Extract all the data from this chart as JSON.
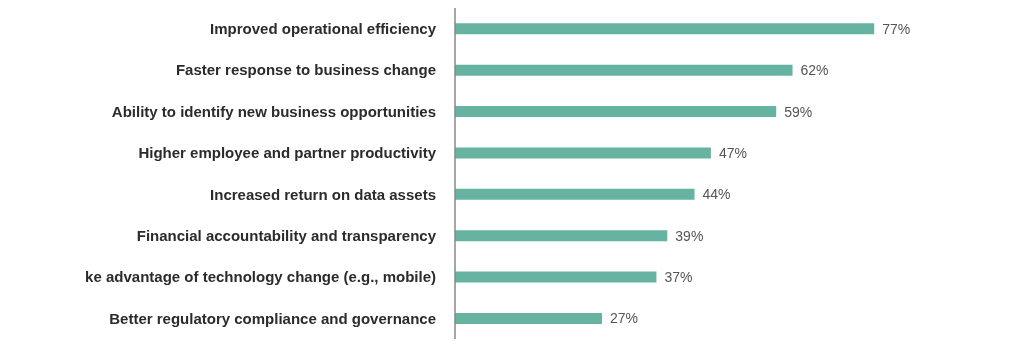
{
  "chart_data": {
    "type": "bar",
    "orientation": "horizontal",
    "categories": [
      "Improved operational efficiency",
      "Faster response to business change",
      "Ability to identify new business opportunities",
      "Higher employee and partner productivity",
      "Increased return on data assets",
      "Financial accountability and transparency",
      "ke advantage of technology change (e.g., mobile)",
      "Better regulatory compliance and governance"
    ],
    "values": [
      77,
      62,
      59,
      47,
      44,
      39,
      37,
      27
    ],
    "value_labels": [
      "77%",
      "62%",
      "59%",
      "47%",
      "44%",
      "39%",
      "37%",
      "27%"
    ],
    "color": "#66b3a1",
    "grid": false,
    "legend": false
  }
}
